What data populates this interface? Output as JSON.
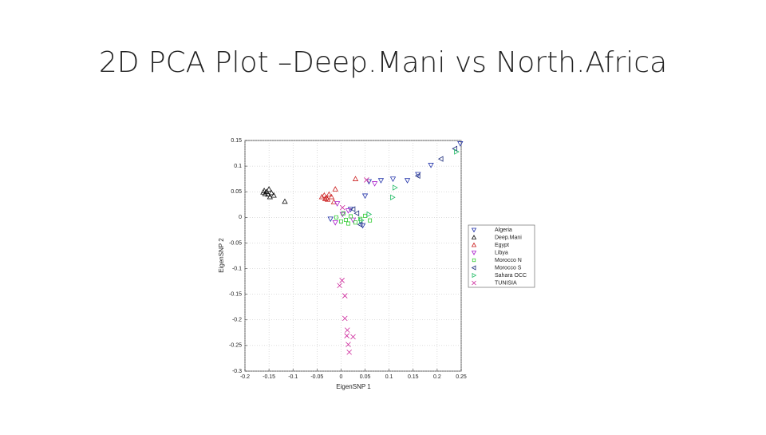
{
  "chart_data": {
    "type": "scatter",
    "title": "2D PCA Plot –Deep.Mani vs North.Africa",
    "x_label": "EigenSNP 1",
    "y_label": "EigenSNP 2",
    "xlim": [
      -0.2,
      0.25
    ],
    "xticks": [
      -0.2,
      -0.15,
      -0.1,
      -0.05,
      0,
      0.05,
      0.1,
      0.15,
      0.2,
      0.25
    ],
    "ylim": [
      -0.3,
      0.15
    ],
    "yticks": [
      -0.3,
      -0.25,
      -0.2,
      -0.15,
      -0.1,
      -0.05,
      0,
      0.05,
      0.1,
      0.15
    ],
    "grid": true,
    "legend": "outside-right",
    "series": [
      {
        "name": "Algeria",
        "color": "#2233aa",
        "marker": "v",
        "x": [
          0.248,
          0.187,
          0.16,
          0.138,
          0.108,
          0.083,
          0.058,
          0.05,
          0.02,
          -0.022,
          0.045
        ],
        "y": [
          0.144,
          0.102,
          0.084,
          0.072,
          0.075,
          0.072,
          0.07,
          0.042,
          0.016,
          -0.003,
          -0.016
        ]
      },
      {
        "name": "Deep.Mani",
        "color": "#111111",
        "marker": "^",
        "x": [
          -0.16,
          -0.155,
          -0.15,
          -0.152,
          -0.145,
          -0.14,
          -0.158,
          -0.148,
          -0.162,
          -0.117
        ],
        "y": [
          0.052,
          0.05,
          0.055,
          0.045,
          0.048,
          0.043,
          0.046,
          0.04,
          0.049,
          0.031
        ]
      },
      {
        "name": "Egypt",
        "color": "#cc2222",
        "marker": "^",
        "x": [
          -0.04,
          -0.035,
          -0.03,
          -0.025,
          -0.02,
          -0.028,
          -0.033,
          -0.012,
          0.03,
          -0.015
        ],
        "y": [
          0.04,
          0.043,
          0.038,
          0.045,
          0.04,
          0.035,
          0.036,
          0.055,
          0.075,
          0.03
        ]
      },
      {
        "name": "Libya",
        "color": "#aa22cc",
        "marker": "v",
        "x": [
          0.07,
          -0.008,
          0.003,
          0.015,
          0.025,
          -0.012
        ],
        "y": [
          0.066,
          0.027,
          0.006,
          0.013,
          -0.005,
          -0.01
        ]
      },
      {
        "name": "Morocco N",
        "color": "#33cc33",
        "marker": "s",
        "x": [
          -0.01,
          0.0,
          0.01,
          0.02,
          0.03,
          0.04,
          0.05,
          0.06,
          0.005,
          0.015
        ],
        "y": [
          0.0,
          -0.008,
          -0.005,
          0.002,
          -0.01,
          -0.003,
          0.003,
          -0.006,
          0.008,
          -0.012
        ]
      },
      {
        "name": "Morocco S",
        "color": "#1a2a7a",
        "marker": "<",
        "x": [
          0.237,
          0.208,
          0.16,
          0.025,
          0.04,
          0.033
        ],
        "y": [
          0.134,
          0.114,
          0.081,
          0.016,
          -0.014,
          0.008
        ]
      },
      {
        "name": "Sahara OCC",
        "color": "#22bb66",
        "marker": ">",
        "x": [
          0.24,
          0.107,
          0.112,
          0.058,
          0.042
        ],
        "y": [
          0.128,
          0.039,
          0.058,
          0.006,
          -0.006
        ]
      },
      {
        "name": "TUNISIA",
        "color": "#cc2299",
        "marker": "x",
        "x": [
          0.002,
          -0.003,
          0.008,
          0.008,
          0.013,
          0.012,
          0.025,
          0.015,
          0.017,
          0.053,
          0.003
        ],
        "y": [
          -0.123,
          -0.133,
          -0.153,
          -0.197,
          -0.22,
          -0.231,
          -0.233,
          -0.248,
          -0.263,
          0.073,
          0.019
        ]
      }
    ]
  }
}
